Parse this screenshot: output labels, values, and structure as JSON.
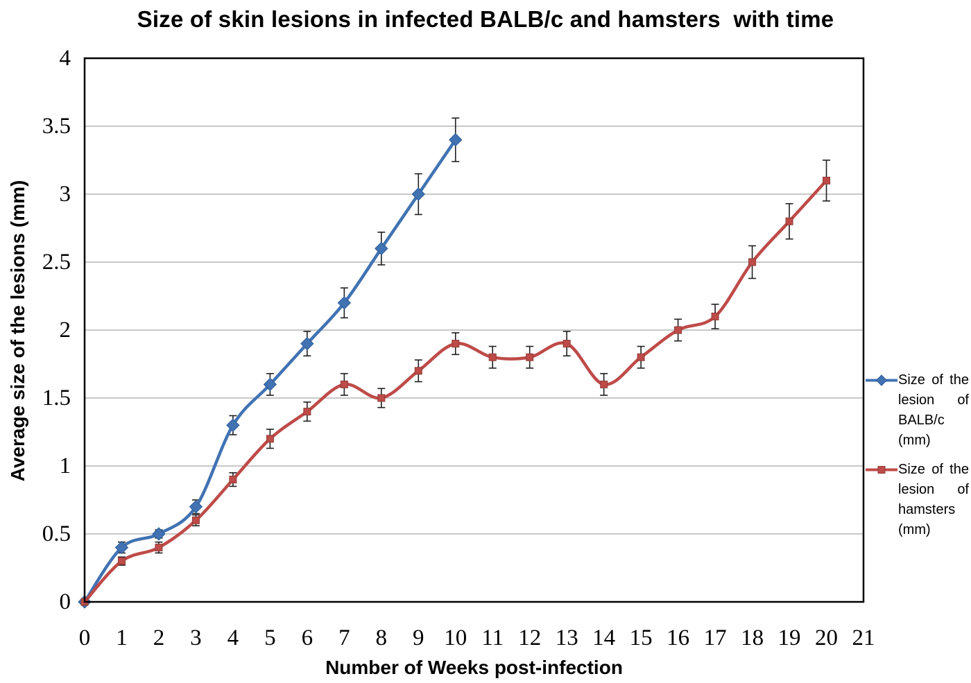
{
  "chart_data": {
    "type": "line",
    "title": "Size of skin lesions in infected BALB/c and hamsters  with time",
    "xlabel": "Number of Weeks post-infection",
    "ylabel": "Average size of the lesions (mm)",
    "xlim": [
      0,
      21
    ],
    "ylim": [
      0,
      4
    ],
    "x_tick_labels": [
      "0",
      "1",
      "2",
      "3",
      "4",
      "5",
      "6",
      "7",
      "8",
      "9",
      "10",
      "11",
      "12",
      "13",
      "14",
      "15",
      "16",
      "17",
      "18",
      "19",
      "20",
      "21"
    ],
    "y_tick_labels": [
      "0",
      "0.5",
      "1",
      "1.5",
      "2",
      "2.5",
      "3",
      "3.5",
      "4"
    ],
    "grid": true,
    "gridline_color": "#A6A6A6",
    "axis_color": "#000000",
    "error_bar_color": "#1F1F1F",
    "legend_position": "right",
    "series": [
      {
        "name": "Size of the lesion of BALB/c (mm)",
        "color": "#4173B3",
        "marker": "diamond",
        "marker_edge_color": "#2F5D96",
        "x": [
          0,
          1,
          2,
          3,
          4,
          5,
          6,
          7,
          8,
          9,
          10
        ],
        "values": [
          0,
          0.4,
          0.5,
          0.7,
          1.3,
          1.6,
          1.9,
          2.2,
          2.6,
          3.0,
          3.4
        ],
        "errors": [
          0,
          0.04,
          0.03,
          0.05,
          0.07,
          0.08,
          0.09,
          0.11,
          0.12,
          0.15,
          0.16
        ]
      },
      {
        "name": "Size of the lesion of hamsters (mm)",
        "color": "#BE4B48",
        "marker": "square",
        "marker_edge_color": "#8F3B38",
        "x": [
          0,
          1,
          2,
          3,
          4,
          5,
          6,
          7,
          8,
          9,
          10,
          11,
          12,
          13,
          14,
          15,
          16,
          17,
          18,
          19,
          20
        ],
        "values": [
          0,
          0.3,
          0.4,
          0.6,
          0.9,
          1.2,
          1.4,
          1.6,
          1.5,
          1.7,
          1.9,
          1.8,
          1.8,
          1.9,
          1.6,
          1.8,
          2.0,
          2.1,
          2.5,
          2.8,
          3.1
        ],
        "errors": [
          0,
          0.03,
          0.04,
          0.04,
          0.05,
          0.07,
          0.07,
          0.08,
          0.07,
          0.08,
          0.08,
          0.08,
          0.08,
          0.09,
          0.08,
          0.08,
          0.08,
          0.09,
          0.12,
          0.13,
          0.15
        ]
      }
    ]
  }
}
